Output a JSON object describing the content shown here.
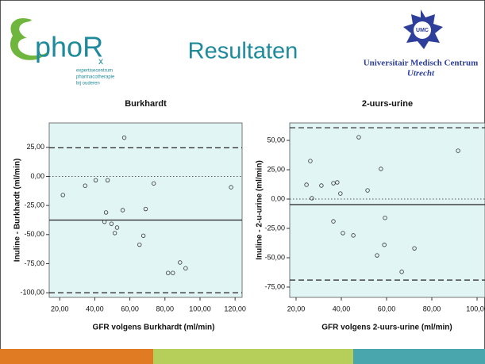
{
  "header": {
    "title": "Resultaten",
    "left_logo": [
      "phoR",
      "x",
      "expertisecentrum",
      "pharmacotherapie",
      "bij ouderen"
    ],
    "right_logo": [
      "UMC",
      "Universitair Medisch Centrum",
      "Utrecht"
    ]
  },
  "chart_data": [
    {
      "type": "scatter",
      "title": "Burkhardt",
      "x_label": "GFR volgens Burkhardt (ml/min)",
      "y_label": "Inuline - Burkhardt (ml/min)",
      "x": [
        56.8,
        34.5,
        40.5,
        47.3,
        21.8,
        73.6,
        46.4,
        55.9,
        69,
        45.5,
        49.5,
        52.7,
        51.4,
        67.7,
        65.5,
        81.8,
        84.5,
        88.6,
        91.8,
        117.7
      ],
      "values": [
        33.3,
        -8,
        -3.3,
        -3.3,
        -16,
        -6,
        -31,
        -29,
        -28,
        -39,
        -40.7,
        -44,
        -48.7,
        -51,
        -58.7,
        -83,
        -83,
        -74,
        -79,
        -9.3
      ],
      "color": "#333333",
      "background": "#e2f5f5",
      "xlim": [
        14,
        124
      ],
      "xticks": [
        {
          "value": 20,
          "label": "20,00"
        },
        {
          "value": 40,
          "label": "40,00"
        },
        {
          "value": 60,
          "label": "60,00"
        },
        {
          "value": 80,
          "label": "80,00"
        },
        {
          "value": 100,
          "label": "100,00"
        },
        {
          "value": 120,
          "label": "120,00"
        }
      ],
      "ylim": [
        -104,
        46
      ],
      "yticks": [
        {
          "value": 25,
          "label": "25,00"
        },
        {
          "value": 0,
          "label": "0,00"
        },
        {
          "value": -25,
          "label": "-25,00"
        },
        {
          "value": -50,
          "label": "-50,00"
        },
        {
          "value": -75,
          "label": "-75,00"
        },
        {
          "value": -100,
          "label": "-100,00"
        }
      ],
      "hlines": [
        {
          "value": 24.6,
          "style": "dashed"
        },
        {
          "value": 0,
          "style": "dotted"
        },
        {
          "value": -37.5,
          "style": "solid"
        },
        {
          "value": -100,
          "style": "dashed"
        }
      ]
    },
    {
      "type": "scatter",
      "title": "2-uurs-urine",
      "x_label": "GFR volgens 2-uurs-urine (ml/min)",
      "y_label": "Inuline - 2-u-urine (ml/min)",
      "x": [
        47.7,
        26.3,
        24.6,
        31.2,
        36.5,
        38.2,
        39.6,
        27,
        51.6,
        57.5,
        91.6,
        36.5,
        40.7,
        45.3,
        59.3,
        59,
        55.8,
        72.3,
        66.7
      ],
      "values": [
        52.7,
        32.4,
        12.2,
        11.5,
        13.5,
        14.2,
        4.7,
        0.7,
        7.4,
        25.7,
        41.2,
        -19,
        -29,
        -31,
        -16,
        -39,
        -48,
        -42,
        -62
      ],
      "color": "#333333",
      "background": "#e2f5f5",
      "xlim": [
        17.2,
        103.5
      ],
      "xticks": [
        {
          "value": 20,
          "label": "20,00"
        },
        {
          "value": 40,
          "label": "40,00"
        },
        {
          "value": 60,
          "label": "60,00"
        },
        {
          "value": 80,
          "label": "80,00"
        },
        {
          "value": 100,
          "label": "100,00"
        }
      ],
      "ylim": [
        -83.8,
        64.9
      ],
      "yticks": [
        {
          "value": 50,
          "label": "50,00"
        },
        {
          "value": 25,
          "label": "25,00"
        },
        {
          "value": 0,
          "label": "0,00"
        },
        {
          "value": -25,
          "label": "-25,00"
        },
        {
          "value": -50,
          "label": "-50,00"
        },
        {
          "value": -75,
          "label": "-75,00"
        }
      ],
      "hlines": [
        {
          "value": 60.8,
          "style": "dashed"
        },
        {
          "value": 0,
          "style": "dotted"
        },
        {
          "value": -4.7,
          "style": "solid"
        },
        {
          "value": -69,
          "style": "dashed"
        }
      ]
    }
  ]
}
